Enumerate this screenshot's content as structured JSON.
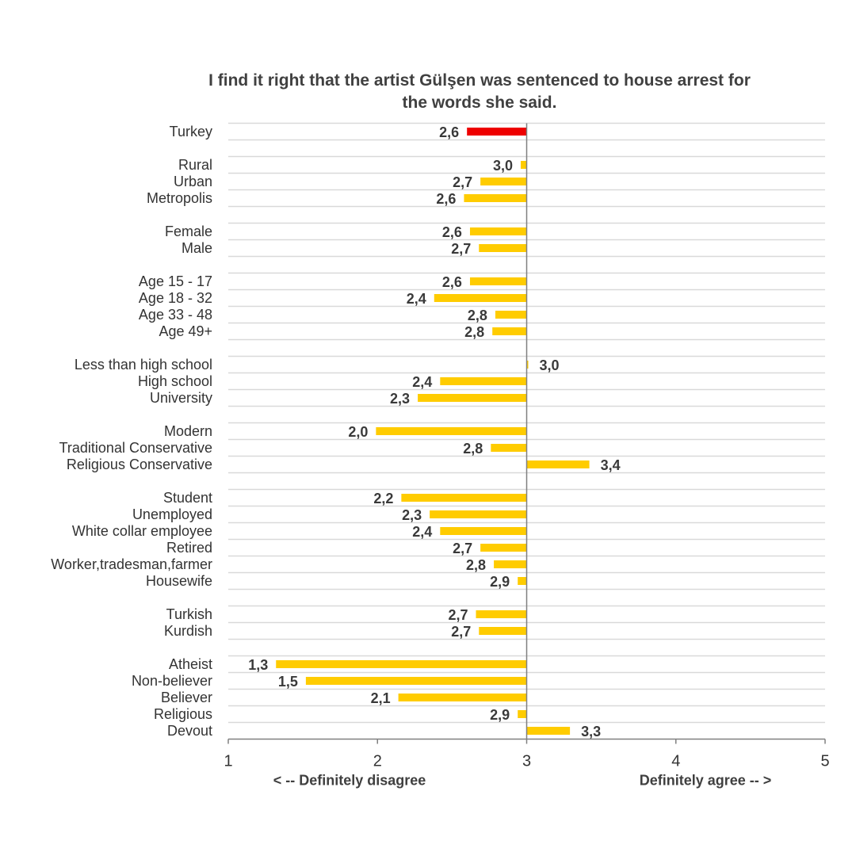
{
  "chart_data": {
    "type": "bar",
    "orientation": "horizontal",
    "title_lines": [
      "I find it right that the artist Gülşen was sentenced to house arrest for",
      "the words she said."
    ],
    "baseline": 3,
    "xlim": [
      1,
      5
    ],
    "x_ticks": [
      "1",
      "2",
      "3",
      "4",
      "5"
    ],
    "x_tick_values": [
      1,
      2,
      3,
      4,
      5
    ],
    "left_end_label": "< -- Definitely disagree",
    "right_end_label": "Definitely agree -- >",
    "grid": true,
    "colors": {
      "highlight": "#ee0000",
      "bar": "#ffcc00",
      "grid": "#d9d9d9",
      "axis": "#808080"
    },
    "groups": [
      {
        "rows": [
          {
            "category": "Turkey",
            "value": 2.6,
            "label": "2,6",
            "highlight": true
          }
        ]
      },
      {
        "rows": [
          {
            "category": "Rural",
            "value": 2.96,
            "label": "3,0"
          },
          {
            "category": "Urban",
            "value": 2.69,
            "label": "2,7"
          },
          {
            "category": "Metropolis",
            "value": 2.58,
            "label": "2,6"
          }
        ]
      },
      {
        "rows": [
          {
            "category": "Female",
            "value": 2.62,
            "label": "2,6"
          },
          {
            "category": "Male",
            "value": 2.68,
            "label": "2,7"
          }
        ]
      },
      {
        "rows": [
          {
            "category": "Age 15 - 17",
            "value": 2.62,
            "label": "2,6"
          },
          {
            "category": "Age 18 - 32",
            "value": 2.38,
            "label": "2,4"
          },
          {
            "category": "Age 33 - 48",
            "value": 2.79,
            "label": "2,8"
          },
          {
            "category": "Age 49+",
            "value": 2.77,
            "label": "2,8"
          }
        ]
      },
      {
        "rows": [
          {
            "category": "Less than high school",
            "value": 3.01,
            "label": "3,0"
          },
          {
            "category": "High school",
            "value": 2.42,
            "label": "2,4"
          },
          {
            "category": "University",
            "value": 2.27,
            "label": "2,3"
          }
        ]
      },
      {
        "rows": [
          {
            "category": "Modern",
            "value": 1.99,
            "label": "2,0"
          },
          {
            "category": "Traditional Conservative",
            "value": 2.76,
            "label": "2,8"
          },
          {
            "category": "Religious Conservative",
            "value": 3.42,
            "label": "3,4"
          }
        ]
      },
      {
        "rows": [
          {
            "category": "Student",
            "value": 2.16,
            "label": "2,2"
          },
          {
            "category": "Unemployed",
            "value": 2.35,
            "label": "2,3"
          },
          {
            "category": "White collar employee",
            "value": 2.42,
            "label": "2,4"
          },
          {
            "category": "Retired",
            "value": 2.69,
            "label": "2,7"
          },
          {
            "category": "Worker,tradesman,farmer",
            "value": 2.78,
            "label": "2,8"
          },
          {
            "category": "Housewife",
            "value": 2.94,
            "label": "2,9"
          }
        ]
      },
      {
        "rows": [
          {
            "category": "Turkish",
            "value": 2.66,
            "label": "2,7"
          },
          {
            "category": "Kurdish",
            "value": 2.68,
            "label": "2,7"
          }
        ]
      },
      {
        "rows": [
          {
            "category": "Atheist",
            "value": 1.32,
            "label": "1,3"
          },
          {
            "category": "Non-believer",
            "value": 1.52,
            "label": "1,5"
          },
          {
            "category": "Believer",
            "value": 2.14,
            "label": "2,1"
          },
          {
            "category": "Religious",
            "value": 2.94,
            "label": "2,9"
          },
          {
            "category": "Devout",
            "value": 3.29,
            "label": "3,3"
          }
        ]
      }
    ]
  }
}
